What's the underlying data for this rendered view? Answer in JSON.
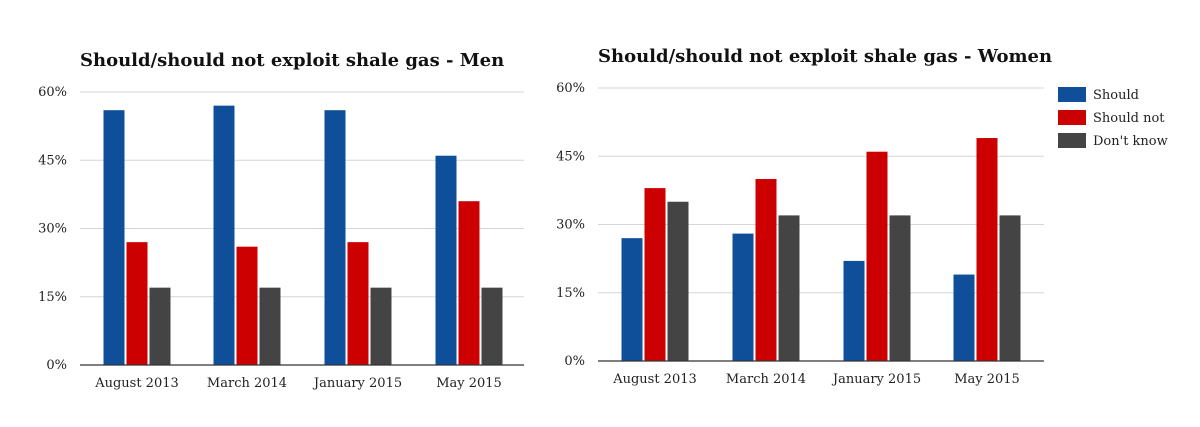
{
  "chart_data": [
    {
      "type": "bar",
      "title": "Should/should not exploit shale gas - Men",
      "xlabel": "",
      "ylabel": "",
      "categories": [
        "August 2013",
        "March 2014",
        "January 2015",
        "May 2015"
      ],
      "y_ticks": [
        "0%",
        "15%",
        "30%",
        "45%",
        "60%"
      ],
      "ylim": [
        0,
        60
      ],
      "grid": true,
      "legend": "none",
      "series": [
        {
          "name": "Should",
          "color": "#0f4f9a",
          "values": [
            56,
            57,
            56,
            46
          ]
        },
        {
          "name": "Should not",
          "color": "#cc0000",
          "values": [
            27,
            26,
            27,
            36
          ]
        },
        {
          "name": "Don't know",
          "color": "#444444",
          "values": [
            17,
            17,
            17,
            17
          ]
        }
      ]
    },
    {
      "type": "bar",
      "title": "Should/should not exploit shale gas - Women",
      "xlabel": "",
      "ylabel": "",
      "categories": [
        "August 2013",
        "March 2014",
        "January 2015",
        "May 2015"
      ],
      "y_ticks": [
        "0%",
        "15%",
        "30%",
        "45%",
        "60%"
      ],
      "ylim": [
        0,
        60
      ],
      "grid": true,
      "legend": "right",
      "series": [
        {
          "name": "Should",
          "color": "#0f4f9a",
          "values": [
            27,
            28,
            22,
            19
          ]
        },
        {
          "name": "Should not",
          "color": "#cc0000",
          "values": [
            38,
            40,
            46,
            49
          ]
        },
        {
          "name": "Don't know",
          "color": "#444444",
          "values": [
            35,
            32,
            32,
            32
          ]
        }
      ]
    }
  ]
}
